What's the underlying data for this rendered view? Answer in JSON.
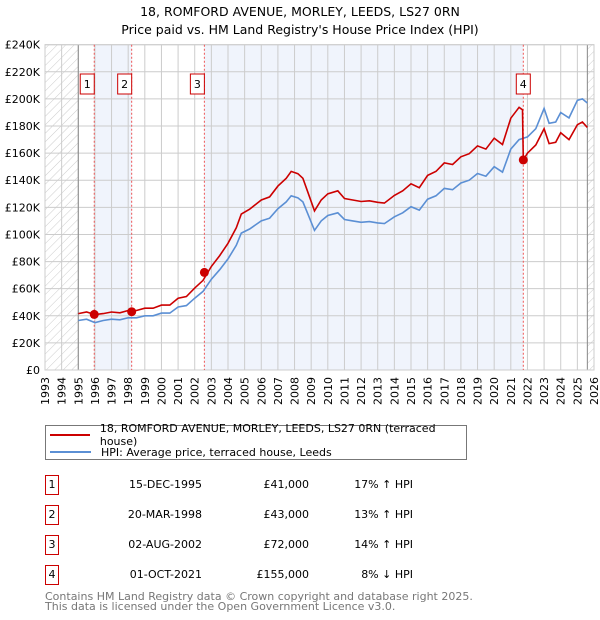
{
  "chart_data": {
    "type": "line",
    "title": "18, ROMFORD AVENUE, MORLEY, LEEDS, LS27 0RN",
    "subtitle": "Price paid vs. HM Land Registry's House Price Index (HPI)",
    "xlim": [
      1993,
      2026
    ],
    "ylim": [
      0,
      240000
    ],
    "x_ticks": [
      "1993",
      "1994",
      "1995",
      "1996",
      "1997",
      "1998",
      "1999",
      "2000",
      "2001",
      "2002",
      "2003",
      "2004",
      "2005",
      "2006",
      "2007",
      "2008",
      "2009",
      "2010",
      "2011",
      "2012",
      "2013",
      "2014",
      "2015",
      "2016",
      "2017",
      "2018",
      "2019",
      "2020",
      "2021",
      "2022",
      "2023",
      "2024",
      "2025",
      "2026"
    ],
    "y_ticks": [
      {
        "value": 0,
        "label": "£0"
      },
      {
        "value": 20000,
        "label": "£20K"
      },
      {
        "value": 40000,
        "label": "£40K"
      },
      {
        "value": 60000,
        "label": "£60K"
      },
      {
        "value": 80000,
        "label": "£80K"
      },
      {
        "value": 100000,
        "label": "£100K"
      },
      {
        "value": 120000,
        "label": "£120K"
      },
      {
        "value": 140000,
        "label": "£140K"
      },
      {
        "value": 160000,
        "label": "£160K"
      },
      {
        "value": 180000,
        "label": "£180K"
      },
      {
        "value": 200000,
        "label": "£200K"
      },
      {
        "value": 220000,
        "label": "£220K"
      },
      {
        "value": 240000,
        "label": "£240K"
      }
    ],
    "grid": true,
    "data_range": [
      1995,
      2025.6
    ],
    "series": [
      {
        "name": "18, ROMFORD AVENUE, MORLEY, LEEDS, LS27 0RN (terraced house)",
        "color": "#cc0000",
        "points": [
          [
            1995,
            41.6
          ],
          [
            1995.5,
            42.8
          ],
          [
            1996,
            40.9
          ],
          [
            1996.5,
            41.6
          ],
          [
            1997,
            42.8
          ],
          [
            1997.5,
            42.2
          ],
          [
            1998,
            43.9
          ],
          [
            1998.5,
            43.9
          ],
          [
            1999,
            45.6
          ],
          [
            1999.5,
            45.6
          ],
          [
            2000,
            47.9
          ],
          [
            2000.5,
            47.9
          ],
          [
            2001,
            53
          ],
          [
            2001.5,
            54.2
          ],
          [
            2002,
            60.4
          ],
          [
            2002.5,
            66.1
          ],
          [
            2003,
            76.4
          ],
          [
            2003.5,
            84.4
          ],
          [
            2004,
            93.5
          ],
          [
            2004.5,
            104.9
          ],
          [
            2004.8,
            115.1
          ],
          [
            2005.3,
            118.6
          ],
          [
            2006,
            125.4
          ],
          [
            2006.5,
            127.7
          ],
          [
            2007,
            135.7
          ],
          [
            2007.5,
            141.4
          ],
          [
            2007.8,
            146.5
          ],
          [
            2008.2,
            144.8
          ],
          [
            2008.5,
            141.4
          ],
          [
            2008.8,
            131.1
          ],
          [
            2009.2,
            117.4
          ],
          [
            2009.6,
            125.4
          ],
          [
            2010,
            130
          ],
          [
            2010.6,
            132.2
          ],
          [
            2011,
            126.5
          ],
          [
            2011.5,
            125.4
          ],
          [
            2012,
            124.3
          ],
          [
            2012.5,
            124.8
          ],
          [
            2013,
            123.7
          ],
          [
            2013.4,
            123.1
          ],
          [
            2014,
            128.8
          ],
          [
            2014.5,
            132.2
          ],
          [
            2015,
            137.4
          ],
          [
            2015.5,
            134.5
          ],
          [
            2016,
            143.6
          ],
          [
            2016.5,
            146.5
          ],
          [
            2017,
            152.8
          ],
          [
            2017.5,
            151.6
          ],
          [
            2018,
            157.3
          ],
          [
            2018.5,
            159.6
          ],
          [
            2019,
            165.3
          ],
          [
            2019.5,
            163
          ],
          [
            2020,
            171
          ],
          [
            2020.5,
            166.4
          ],
          [
            2021,
            185.8
          ],
          [
            2021.5,
            193.8
          ],
          [
            2021.7,
            192
          ],
          [
            2021.75,
            155
          ],
          [
            2022,
            160
          ],
          [
            2022.5,
            166
          ],
          [
            2023,
            178
          ],
          [
            2023.3,
            167
          ],
          [
            2023.7,
            168
          ],
          [
            2024,
            175
          ],
          [
            2024.5,
            170
          ],
          [
            2025,
            181
          ],
          [
            2025.3,
            183
          ],
          [
            2025.6,
            179
          ]
        ]
      },
      {
        "name": "HPI: Average price, terraced house, Leeds",
        "color": "#5b8fd4",
        "points": [
          [
            1995,
            36.5
          ],
          [
            1995.5,
            37.5
          ],
          [
            1996,
            35
          ],
          [
            1996.5,
            36.5
          ],
          [
            1997,
            37.5
          ],
          [
            1997.5,
            37
          ],
          [
            1998,
            38.5
          ],
          [
            1998.5,
            38.5
          ],
          [
            1999,
            40
          ],
          [
            1999.5,
            40
          ],
          [
            2000,
            42
          ],
          [
            2000.5,
            42
          ],
          [
            2001,
            46.5
          ],
          [
            2001.5,
            47.5
          ],
          [
            2002,
            53
          ],
          [
            2002.5,
            58
          ],
          [
            2003,
            67
          ],
          [
            2003.5,
            74
          ],
          [
            2004,
            82
          ],
          [
            2004.5,
            92
          ],
          [
            2004.8,
            101
          ],
          [
            2005.3,
            104
          ],
          [
            2006,
            110
          ],
          [
            2006.5,
            112
          ],
          [
            2007,
            119
          ],
          [
            2007.5,
            124
          ],
          [
            2007.8,
            128.5
          ],
          [
            2008.2,
            127
          ],
          [
            2008.5,
            124
          ],
          [
            2008.8,
            115
          ],
          [
            2009.2,
            103
          ],
          [
            2009.6,
            110
          ],
          [
            2010,
            114
          ],
          [
            2010.6,
            116
          ],
          [
            2011,
            111
          ],
          [
            2011.5,
            110
          ],
          [
            2012,
            109
          ],
          [
            2012.5,
            109.5
          ],
          [
            2013,
            108.5
          ],
          [
            2013.4,
            108
          ],
          [
            2014,
            113
          ],
          [
            2014.5,
            116
          ],
          [
            2015,
            120.5
          ],
          [
            2015.5,
            118
          ],
          [
            2016,
            126
          ],
          [
            2016.5,
            128.5
          ],
          [
            2017,
            134
          ],
          [
            2017.5,
            133
          ],
          [
            2018,
            138
          ],
          [
            2018.5,
            140
          ],
          [
            2019,
            145
          ],
          [
            2019.5,
            143
          ],
          [
            2020,
            150
          ],
          [
            2020.5,
            146
          ],
          [
            2021,
            163
          ],
          [
            2021.5,
            170
          ],
          [
            2021.75,
            171
          ],
          [
            2022,
            172
          ],
          [
            2022.5,
            178
          ],
          [
            2023,
            193
          ],
          [
            2023.3,
            182
          ],
          [
            2023.7,
            183
          ],
          [
            2024,
            190
          ],
          [
            2024.5,
            186
          ],
          [
            2025,
            199
          ],
          [
            2025.3,
            200
          ],
          [
            2025.6,
            197
          ]
        ]
      }
    ],
    "series_units": "£K",
    "sales": [
      {
        "label": "1",
        "x": 1995.96,
        "value": 41
      },
      {
        "label": "2",
        "x": 1998.21,
        "value": 43
      },
      {
        "label": "3",
        "x": 2002.58,
        "value": 72
      },
      {
        "label": "4",
        "x": 2021.75,
        "value": 155
      }
    ],
    "shaded_ranges": [
      [
        1995.96,
        1998.21
      ],
      [
        2002.58,
        2021.75
      ]
    ]
  },
  "legend": {
    "property": "18, ROMFORD AVENUE, MORLEY, LEEDS, LS27 0RN (terraced house)",
    "hpi": "HPI: Average price, terraced house, Leeds"
  },
  "transactions": [
    {
      "num": "1",
      "date": "15-DEC-1995",
      "price": "£41,000",
      "hpi": "17% ↑ HPI"
    },
    {
      "num": "2",
      "date": "20-MAR-1998",
      "price": "£43,000",
      "hpi": "13% ↑ HPI"
    },
    {
      "num": "3",
      "date": "02-AUG-2002",
      "price": "£72,000",
      "hpi": "14% ↑ HPI"
    },
    {
      "num": "4",
      "date": "01-OCT-2021",
      "price": "£155,000",
      "hpi": "8% ↓ HPI"
    }
  ],
  "footer": {
    "line1": "Contains HM Land Registry data © Crown copyright and database right 2025.",
    "line2": "This data is licensed under the Open Government Licence v3.0."
  }
}
